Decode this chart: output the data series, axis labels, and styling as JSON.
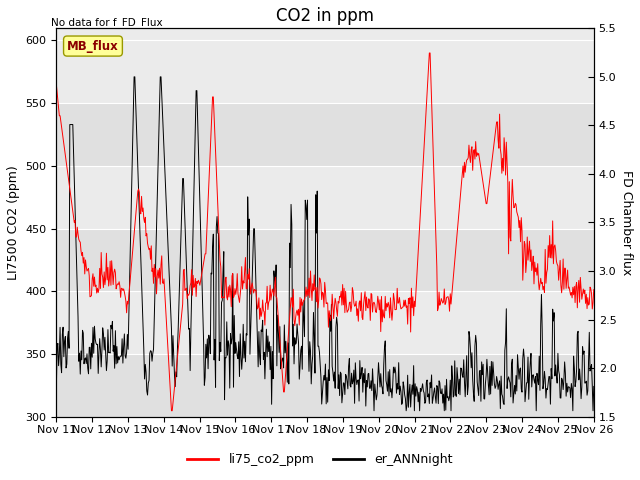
{
  "title": "CO2 in ppm",
  "top_left_text": "No data for f_FD_Flux",
  "ylabel_left": "LI7500 CO2 (ppm)",
  "ylabel_right": "FD Chamber flux",
  "ylim_left": [
    300,
    610
  ],
  "ylim_right": [
    1.5,
    5.5
  ],
  "yticks_left": [
    300,
    350,
    400,
    450,
    500,
    550,
    600
  ],
  "yticks_right": [
    1.5,
    2.0,
    2.5,
    3.0,
    3.5,
    4.0,
    4.5,
    5.0,
    5.5
  ],
  "xtick_labels": [
    "Nov 11",
    "Nov 12",
    "Nov 13",
    "Nov 14",
    "Nov 15",
    "Nov 16",
    "Nov 17",
    "Nov 18",
    "Nov 19",
    "Nov 20",
    "Nov 21",
    "Nov 22",
    "Nov 23",
    "Nov 24",
    "Nov 25",
    "Nov 26"
  ],
  "legend_labels": [
    "li75_co2_ppm",
    "er_ANNnight"
  ],
  "legend_colors": [
    "red",
    "black"
  ],
  "mb_flux_box_text": "MB_flux",
  "mb_flux_box_color": "#FFFF99",
  "mb_flux_box_textcolor": "#8B0000",
  "plot_bg_color": "#EBEBEB",
  "band1_color": "#DCDCDC",
  "band2_color": "#E8E8E8",
  "grid_color": "white",
  "line1_color": "red",
  "line2_color": "black",
  "title_fontsize": 12,
  "axis_fontsize": 9,
  "tick_fontsize": 8
}
